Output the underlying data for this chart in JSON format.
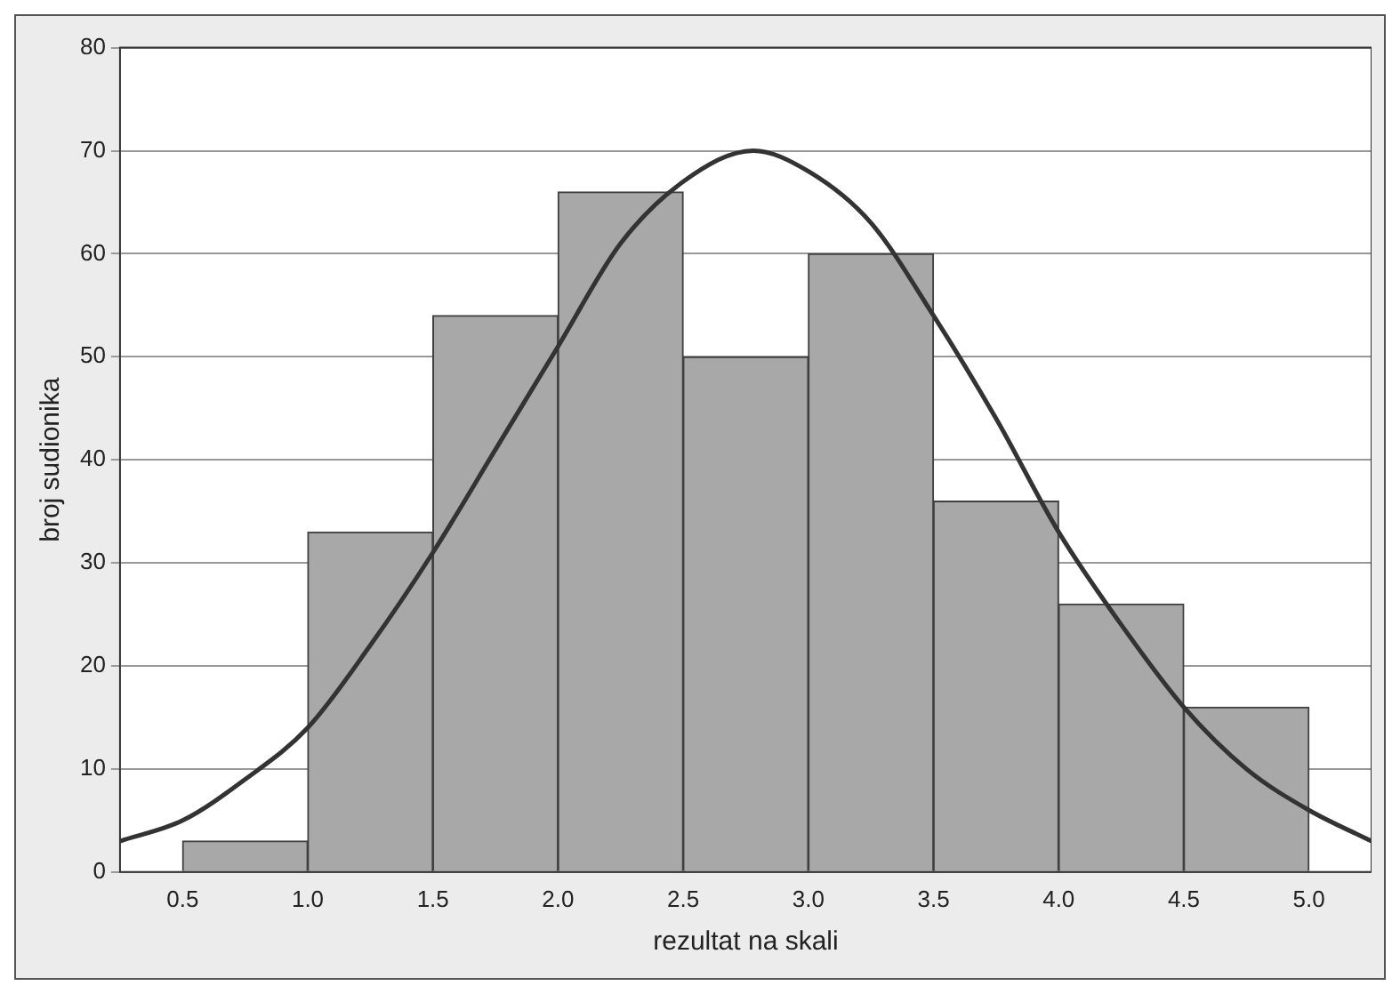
{
  "chart_data": {
    "type": "histogram",
    "xlabel": "rezultat na skali",
    "ylabel": "broj sudionika",
    "bins": [
      0.5,
      1.0,
      1.5,
      2.0,
      2.5,
      3.0,
      3.5,
      4.0,
      4.5,
      5.0
    ],
    "values": [
      3,
      33,
      54,
      66,
      50,
      60,
      36,
      26,
      16
    ],
    "color": "#a8a8a8",
    "series": [
      {
        "type": "line",
        "color": "#333333",
        "x": [
          0.25,
          0.5,
          0.75,
          1.0,
          1.25,
          1.5,
          1.75,
          2.0,
          2.25,
          2.5,
          2.78,
          3.0,
          3.25,
          3.5,
          3.75,
          4.0,
          4.25,
          4.5,
          4.75,
          5.0,
          5.25
        ],
        "values": [
          3,
          5,
          9,
          14,
          22,
          31,
          41,
          51,
          61,
          67,
          70,
          68,
          63,
          54,
          44,
          33,
          24,
          16,
          10,
          6,
          3
        ]
      }
    ],
    "xlim": [
      0.25,
      5.25
    ],
    "xticks": [
      0.5,
      {
        "value": 1,
        "label": "1.0"
      },
      1.5,
      {
        "value": 2,
        "label": "2.0"
      },
      2.5,
      {
        "value": 3,
        "label": "3.0"
      },
      3.5,
      {
        "value": 4,
        "label": "4.0"
      },
      4.5,
      {
        "value": 5,
        "label": "5.0"
      }
    ],
    "ylim": [
      0,
      80
    ],
    "yticks": [
      0,
      10,
      20,
      30,
      40,
      50,
      60,
      70,
      80
    ],
    "grid": "y",
    "marker": "none"
  }
}
